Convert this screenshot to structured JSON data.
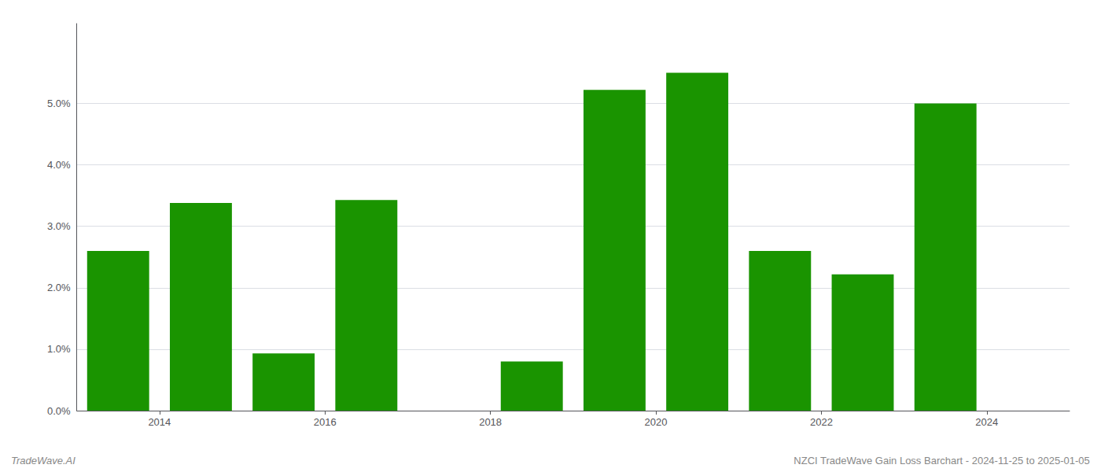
{
  "chart_data": {
    "type": "bar",
    "x": [
      2013,
      2014,
      2015,
      2016,
      2017,
      2018,
      2019,
      2020,
      2021,
      2022,
      2023
    ],
    "values": [
      0.026,
      0.0338,
      0.0093,
      0.0343,
      0.0,
      0.008,
      0.0522,
      0.055,
      0.026,
      0.0222,
      0.05
    ],
    "color": "#1a9400",
    "xlim": [
      2012.5,
      2024.5
    ],
    "xticks": [
      {
        "value": 2013.5,
        "label": "2014"
      },
      {
        "value": 2015.5,
        "label": "2016"
      },
      {
        "value": 2017.5,
        "label": "2018"
      },
      {
        "value": 2019.5,
        "label": "2020"
      },
      {
        "value": 2021.5,
        "label": "2022"
      },
      {
        "value": 2023.5,
        "label": "2024"
      }
    ],
    "ylim": [
      0,
      0.063
    ],
    "yticks": [
      {
        "value": 0.0,
        "label": "0.0%"
      },
      {
        "value": 0.01,
        "label": "1.0%"
      },
      {
        "value": 0.02,
        "label": "2.0%"
      },
      {
        "value": 0.03,
        "label": "3.0%"
      },
      {
        "value": 0.04,
        "label": "4.0%"
      },
      {
        "value": 0.05,
        "label": "5.0%"
      }
    ],
    "grid": true,
    "annotations": [
      "TradeWave.AI",
      "NZCI TradeWave Gain Loss Barchart - 2024-11-25 to 2025-01-05"
    ]
  }
}
